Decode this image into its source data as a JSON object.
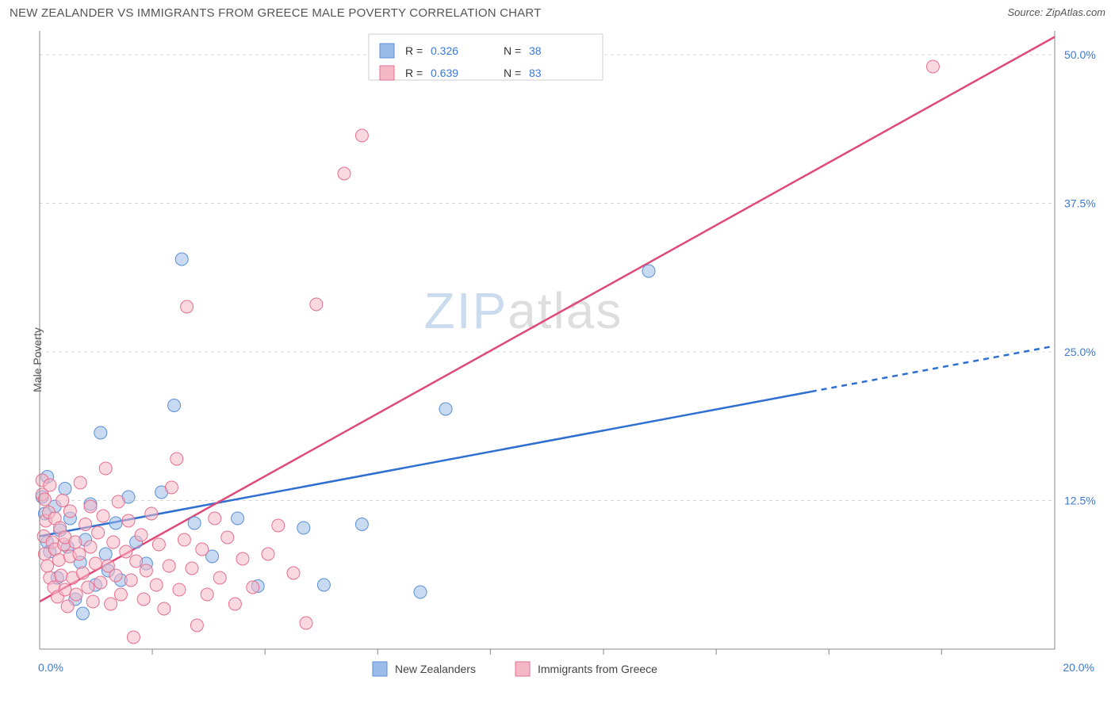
{
  "header": {
    "title": "NEW ZEALANDER VS IMMIGRANTS FROM GREECE MALE POVERTY CORRELATION CHART",
    "source": "Source: ZipAtlas.com"
  },
  "ylabel": "Male Poverty",
  "watermark": {
    "part1": "ZIP",
    "part2": "atlas"
  },
  "chart": {
    "type": "scatter",
    "xlim": [
      0,
      20
    ],
    "ylim": [
      0,
      52
    ],
    "y_ticks": [
      {
        "v": 12.5,
        "label": "12.5%"
      },
      {
        "v": 25.0,
        "label": "25.0%"
      },
      {
        "v": 37.5,
        "label": "37.5%"
      },
      {
        "v": 50.0,
        "label": "50.0%"
      }
    ],
    "x_left_label": "0.0%",
    "x_right_label": "20.0%",
    "x_minor_ticks": [
      2.22,
      4.44,
      6.66,
      8.88,
      11.11,
      13.33,
      15.55,
      17.77
    ],
    "grid_color": "#d9d9d9",
    "axis_color": "#888888",
    "background": "#ffffff",
    "marker_radius": 8,
    "marker_opacity": 0.55,
    "series": [
      {
        "key": "nz",
        "label": "New Zealanders",
        "color_fill": "#9bbbe8",
        "color_stroke": "#5a8fd6",
        "r_value": "0.326",
        "n_value": "38",
        "trend": {
          "color": "#2f6fd0",
          "y_at_x0": 9.5,
          "y_at_xmax": 25.5,
          "solid_until_x": 15.2
        },
        "points": [
          [
            0.05,
            12.8
          ],
          [
            0.1,
            11.4
          ],
          [
            0.15,
            9.0
          ],
          [
            0.15,
            14.5
          ],
          [
            0.2,
            8.2
          ],
          [
            0.3,
            12.0
          ],
          [
            0.35,
            6.0
          ],
          [
            0.4,
            10.0
          ],
          [
            0.5,
            13.5
          ],
          [
            0.55,
            8.6
          ],
          [
            0.6,
            11.0
          ],
          [
            0.7,
            4.2
          ],
          [
            0.8,
            7.3
          ],
          [
            0.85,
            3.0
          ],
          [
            0.9,
            9.2
          ],
          [
            1.0,
            12.2
          ],
          [
            1.1,
            5.4
          ],
          [
            1.2,
            18.2
          ],
          [
            1.3,
            8.0
          ],
          [
            1.35,
            6.6
          ],
          [
            1.5,
            10.6
          ],
          [
            1.6,
            5.8
          ],
          [
            1.75,
            12.8
          ],
          [
            1.9,
            9.0
          ],
          [
            2.1,
            7.2
          ],
          [
            2.4,
            13.2
          ],
          [
            2.65,
            20.5
          ],
          [
            2.8,
            32.8
          ],
          [
            3.05,
            10.6
          ],
          [
            3.4,
            7.8
          ],
          [
            3.9,
            11.0
          ],
          [
            4.3,
            5.3
          ],
          [
            5.2,
            10.2
          ],
          [
            5.6,
            5.4
          ],
          [
            6.35,
            10.5
          ],
          [
            7.5,
            4.8
          ],
          [
            8.0,
            20.2
          ],
          [
            12.0,
            31.8
          ]
        ]
      },
      {
        "key": "gr",
        "label": "Immigrants from Greece",
        "color_fill": "#f5b8c6",
        "color_stroke": "#e56f8f",
        "r_value": "0.639",
        "n_value": "83",
        "trend": {
          "color": "#e04a78",
          "y_at_x0": 4.0,
          "y_at_xmax": 51.5,
          "solid_until_x": 20
        },
        "points": [
          [
            0.05,
            13.0
          ],
          [
            0.05,
            14.2
          ],
          [
            0.08,
            9.5
          ],
          [
            0.1,
            12.6
          ],
          [
            0.1,
            8.0
          ],
          [
            0.12,
            10.8
          ],
          [
            0.15,
            7.0
          ],
          [
            0.18,
            11.5
          ],
          [
            0.2,
            6.0
          ],
          [
            0.2,
            13.8
          ],
          [
            0.25,
            9.0
          ],
          [
            0.28,
            5.2
          ],
          [
            0.3,
            8.4
          ],
          [
            0.3,
            11.0
          ],
          [
            0.35,
            4.4
          ],
          [
            0.38,
            7.5
          ],
          [
            0.4,
            10.2
          ],
          [
            0.42,
            6.2
          ],
          [
            0.45,
            12.5
          ],
          [
            0.48,
            8.8
          ],
          [
            0.5,
            5.0
          ],
          [
            0.5,
            9.4
          ],
          [
            0.55,
            3.6
          ],
          [
            0.6,
            7.8
          ],
          [
            0.6,
            11.6
          ],
          [
            0.65,
            6.0
          ],
          [
            0.7,
            9.0
          ],
          [
            0.72,
            4.6
          ],
          [
            0.78,
            8.0
          ],
          [
            0.8,
            14.0
          ],
          [
            0.85,
            6.4
          ],
          [
            0.9,
            10.5
          ],
          [
            0.95,
            5.2
          ],
          [
            1.0,
            8.6
          ],
          [
            1.0,
            12.0
          ],
          [
            1.05,
            4.0
          ],
          [
            1.1,
            7.2
          ],
          [
            1.15,
            9.8
          ],
          [
            1.2,
            5.6
          ],
          [
            1.25,
            11.2
          ],
          [
            1.3,
            15.2
          ],
          [
            1.35,
            7.0
          ],
          [
            1.4,
            3.8
          ],
          [
            1.45,
            9.0
          ],
          [
            1.5,
            6.2
          ],
          [
            1.55,
            12.4
          ],
          [
            1.6,
            4.6
          ],
          [
            1.7,
            8.2
          ],
          [
            1.75,
            10.8
          ],
          [
            1.8,
            5.8
          ],
          [
            1.85,
            1.0
          ],
          [
            1.9,
            7.4
          ],
          [
            2.0,
            9.6
          ],
          [
            2.05,
            4.2
          ],
          [
            2.1,
            6.6
          ],
          [
            2.2,
            11.4
          ],
          [
            2.3,
            5.4
          ],
          [
            2.35,
            8.8
          ],
          [
            2.45,
            3.4
          ],
          [
            2.55,
            7.0
          ],
          [
            2.6,
            13.6
          ],
          [
            2.7,
            16.0
          ],
          [
            2.75,
            5.0
          ],
          [
            2.85,
            9.2
          ],
          [
            2.9,
            28.8
          ],
          [
            3.0,
            6.8
          ],
          [
            3.1,
            2.0
          ],
          [
            3.2,
            8.4
          ],
          [
            3.3,
            4.6
          ],
          [
            3.45,
            11.0
          ],
          [
            3.55,
            6.0
          ],
          [
            3.7,
            9.4
          ],
          [
            3.85,
            3.8
          ],
          [
            4.0,
            7.6
          ],
          [
            4.2,
            5.2
          ],
          [
            4.5,
            8.0
          ],
          [
            4.7,
            10.4
          ],
          [
            5.0,
            6.4
          ],
          [
            5.25,
            2.2
          ],
          [
            5.45,
            29.0
          ],
          [
            6.0,
            40.0
          ],
          [
            6.35,
            43.2
          ],
          [
            17.6,
            49.0
          ]
        ]
      }
    ]
  },
  "top_legend": {
    "rows": [
      {
        "swatch_fill": "#9bbbe8",
        "swatch_stroke": "#5a8fd6",
        "r_label": "R =",
        "r_val": "0.326",
        "n_label": "N =",
        "n_val": "38"
      },
      {
        "swatch_fill": "#f5b8c6",
        "swatch_stroke": "#e56f8f",
        "r_label": "R =",
        "r_val": "0.639",
        "n_label": "N =",
        "n_val": "83"
      }
    ]
  },
  "bottom_legend": {
    "items": [
      {
        "swatch_fill": "#9bbbe8",
        "swatch_stroke": "#5a8fd6",
        "label": "New Zealanders"
      },
      {
        "swatch_fill": "#f5b8c6",
        "swatch_stroke": "#e56f8f",
        "label": "Immigrants from Greece"
      }
    ]
  }
}
